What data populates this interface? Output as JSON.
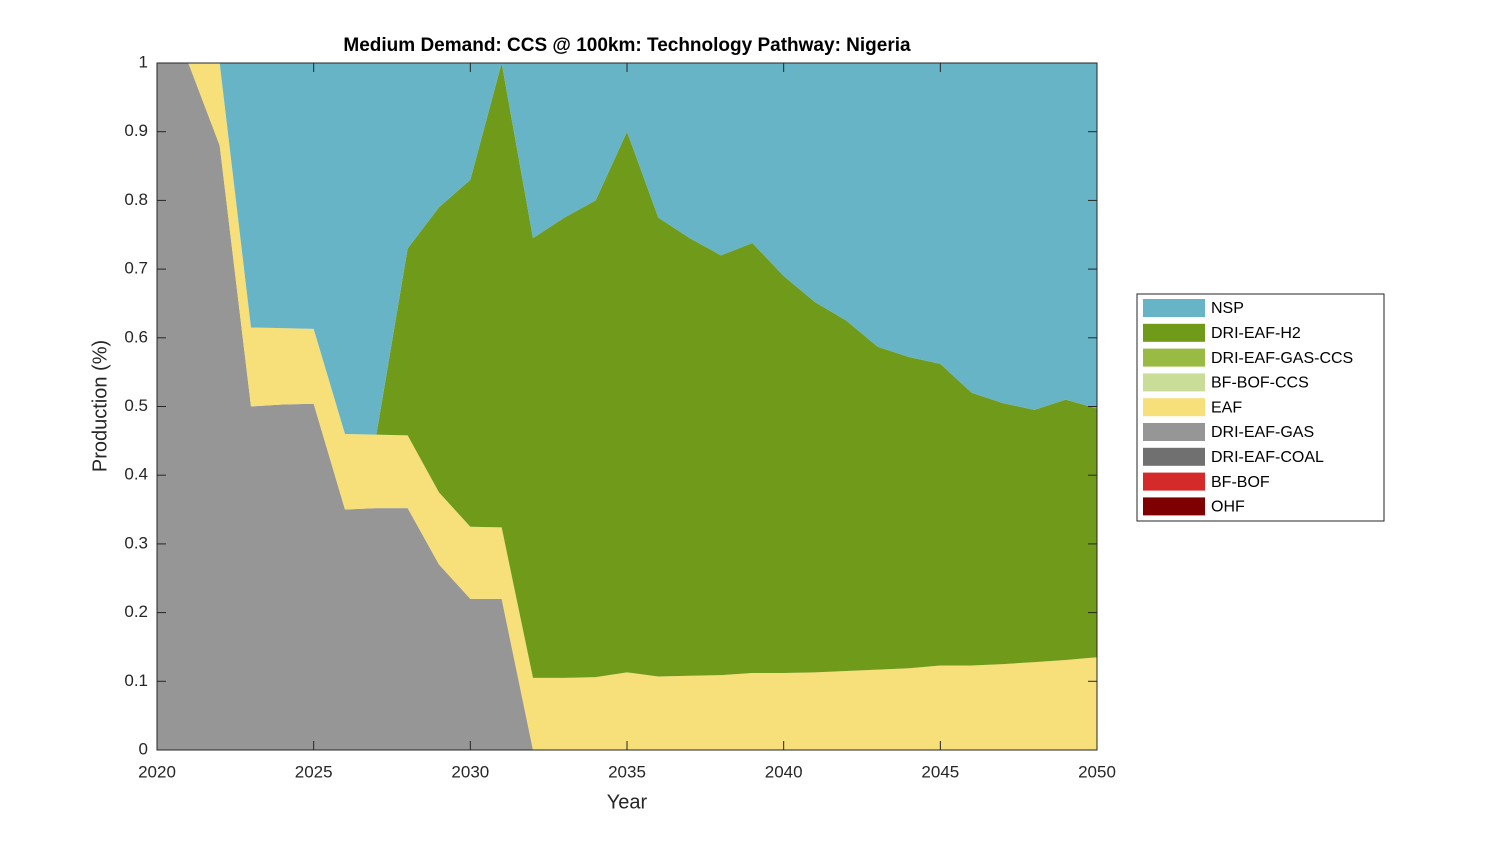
{
  "chart_data": {
    "type": "stacked-area",
    "title": "Medium Demand: CCS @ 100km: Technology Pathway: Nigeria",
    "x_label": "Year",
    "y_label": "Production (%)",
    "x": [
      2020,
      2021,
      2022,
      2023,
      2024,
      2025,
      2026,
      2027,
      2028,
      2029,
      2030,
      2031,
      2032,
      2033,
      2034,
      2035,
      2036,
      2037,
      2038,
      2039,
      2040,
      2041,
      2042,
      2043,
      2044,
      2045,
      2046,
      2047,
      2048,
      2049,
      2050
    ],
    "xlim": [
      2020,
      2050
    ],
    "xticks": [
      2020,
      2025,
      2030,
      2035,
      2040,
      2045,
      2050
    ],
    "ylim": [
      0,
      1
    ],
    "yticks": [
      0,
      0.1,
      0.2,
      0.3,
      0.4,
      0.5,
      0.6,
      0.7,
      0.8,
      0.9,
      1
    ],
    "legend": "right",
    "series": [
      {
        "name": "NSP",
        "color": "#66b4c6",
        "values": [
          0,
          0,
          0,
          0.385,
          0.386,
          0.387,
          0.54,
          0.541,
          0.27,
          0.21,
          0.17,
          0,
          0.255,
          0.225,
          0.2,
          0.1,
          0.225,
          0.255,
          0.28,
          0.262,
          0.31,
          0.348,
          0.375,
          0.413,
          0.428,
          0.438,
          0.48,
          0.495,
          0.505,
          0.49,
          0.503
        ]
      },
      {
        "name": "DRI-EAF-H2",
        "color": "#709a1a",
        "values": [
          0,
          0,
          0,
          0,
          0,
          0,
          0,
          0,
          0.272,
          0.415,
          0.505,
          0.676,
          0.64,
          0.67,
          0.694,
          0.787,
          0.668,
          0.637,
          0.611,
          0.626,
          0.578,
          0.539,
          0.51,
          0.47,
          0.453,
          0.439,
          0.397,
          0.38,
          0.367,
          0.379,
          0.362
        ]
      },
      {
        "name": "DRI-EAF-GAS-CCS",
        "color": "#99bb44",
        "values": [
          0,
          0,
          0,
          0,
          0,
          0,
          0,
          0,
          0,
          0,
          0,
          0,
          0,
          0,
          0,
          0,
          0,
          0,
          0,
          0,
          0,
          0,
          0,
          0,
          0,
          0,
          0,
          0,
          0,
          0,
          0
        ]
      },
      {
        "name": "BF-BOF-CCS",
        "color": "#c9dc98",
        "values": [
          0,
          0,
          0,
          0,
          0,
          0,
          0,
          0,
          0,
          0,
          0,
          0,
          0,
          0,
          0,
          0,
          0,
          0,
          0,
          0,
          0,
          0,
          0,
          0,
          0,
          0,
          0,
          0,
          0,
          0,
          0
        ]
      },
      {
        "name": "EAF",
        "color": "#f7df7a",
        "values": [
          0,
          0,
          0.12,
          0.115,
          0.111,
          0.109,
          0.11,
          0.107,
          0.106,
          0.105,
          0.105,
          0.104,
          0.105,
          0.105,
          0.106,
          0.113,
          0.107,
          0.108,
          0.109,
          0.112,
          0.112,
          0.113,
          0.115,
          0.117,
          0.119,
          0.123,
          0.123,
          0.125,
          0.128,
          0.131,
          0.135
        ]
      },
      {
        "name": "DRI-EAF-GAS",
        "color": "#969696",
        "values": [
          1,
          1,
          0.88,
          0.5,
          0.503,
          0.504,
          0.35,
          0.352,
          0.352,
          0.27,
          0.22,
          0.22,
          0,
          0,
          0,
          0,
          0,
          0,
          0,
          0,
          0,
          0,
          0,
          0,
          0,
          0,
          0,
          0,
          0,
          0,
          0
        ]
      },
      {
        "name": "DRI-EAF-COAL",
        "color": "#707070",
        "values": [
          0,
          0,
          0,
          0,
          0,
          0,
          0,
          0,
          0,
          0,
          0,
          0,
          0,
          0,
          0,
          0,
          0,
          0,
          0,
          0,
          0,
          0,
          0,
          0,
          0,
          0,
          0,
          0,
          0,
          0,
          0
        ]
      },
      {
        "name": "BF-BOF",
        "color": "#d42a2a",
        "values": [
          0,
          0,
          0,
          0,
          0,
          0,
          0,
          0,
          0,
          0,
          0,
          0,
          0,
          0,
          0,
          0,
          0,
          0,
          0,
          0,
          0,
          0,
          0,
          0,
          0,
          0,
          0,
          0,
          0,
          0,
          0
        ]
      },
      {
        "name": "OHF",
        "color": "#7f0000",
        "values": [
          0,
          0,
          0,
          0,
          0,
          0,
          0,
          0,
          0,
          0,
          0,
          0,
          0,
          0,
          0,
          0,
          0,
          0,
          0,
          0,
          0,
          0,
          0,
          0,
          0,
          0,
          0,
          0,
          0,
          0,
          0
        ]
      }
    ]
  }
}
